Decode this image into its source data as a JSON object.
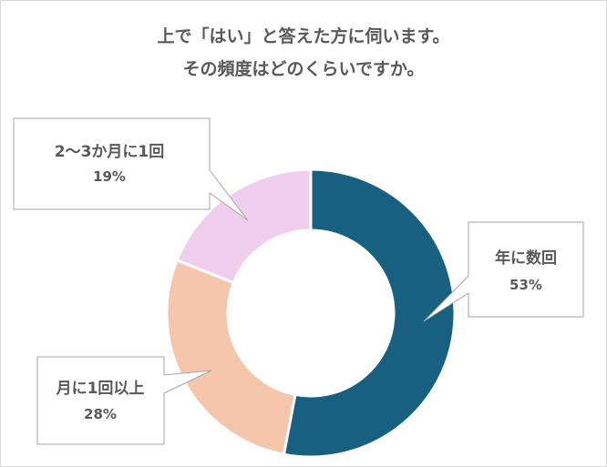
{
  "chart_data": {
    "type": "pie",
    "donut": true,
    "title_lines": [
      "上で「はい」と答えた方に伺います。",
      "その頻度はどのくらいですか。"
    ],
    "slices": [
      {
        "label": "年に数回",
        "value": 53,
        "value_label": "53%",
        "color": "#17607f"
      },
      {
        "label": "月に1回以上",
        "value": 28,
        "value_label": "28%",
        "color": "#f5c6ac"
      },
      {
        "label": "2～3か月に1回",
        "value": 19,
        "value_label": "19%",
        "color": "#f0cfee"
      }
    ],
    "legend": "none",
    "data_labels": "callouts"
  }
}
